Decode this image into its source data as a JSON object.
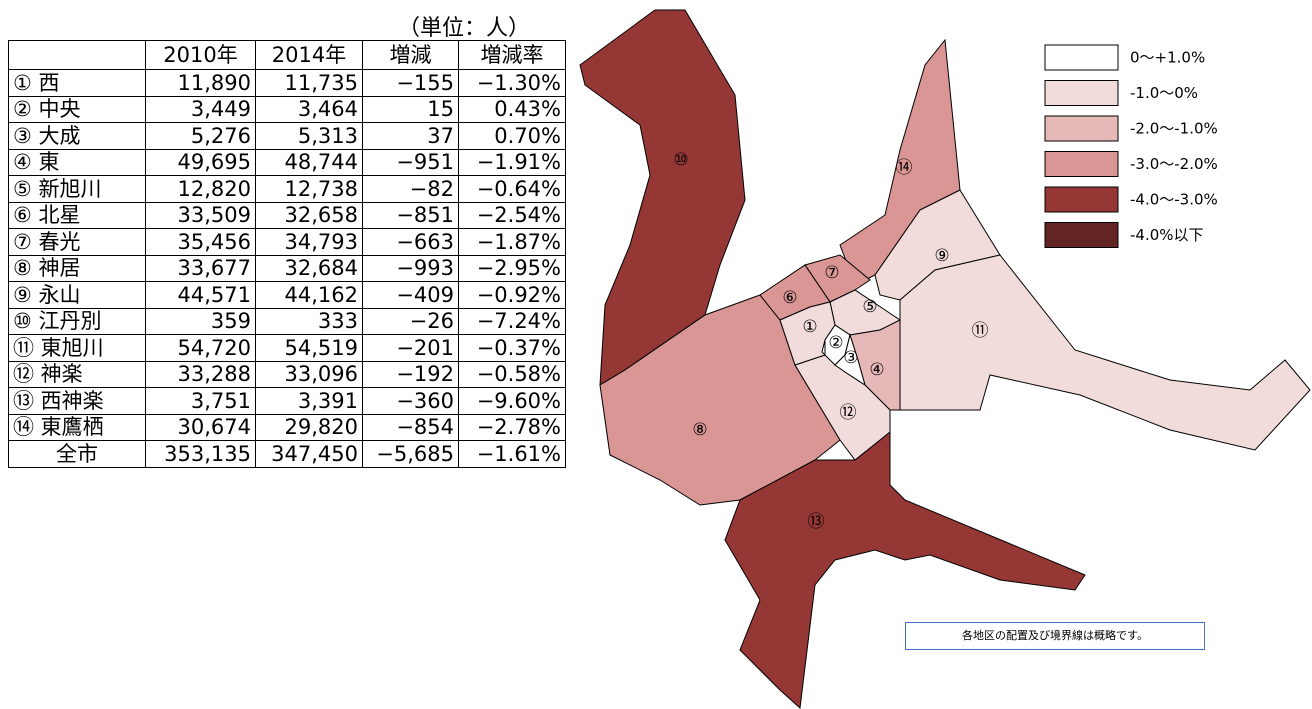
{
  "unit": "（単位：人）",
  "table": {
    "header": [
      "",
      "2010年",
      "2014年",
      "増減",
      "増減率"
    ],
    "rows": [
      [
        "① 西",
        "11,890",
        "11,735",
        "−155",
        "−1.30%"
      ],
      [
        "② 中央",
        "3,449",
        "3,464",
        "15",
        "0.43%"
      ],
      [
        "③ 大成",
        "5,276",
        "5,313",
        "37",
        "0.70%"
      ],
      [
        "④ 東",
        "49,695",
        "48,744",
        "−951",
        "−1.91%"
      ],
      [
        "⑤ 新旭川",
        "12,820",
        "12,738",
        "−82",
        "−0.64%"
      ],
      [
        "⑥ 北星",
        "33,509",
        "32,658",
        "−851",
        "−2.54%"
      ],
      [
        "⑦ 春光",
        "35,456",
        "34,793",
        "−663",
        "−1.87%"
      ],
      [
        "⑧ 神居",
        "33,677",
        "32,684",
        "−993",
        "−2.95%"
      ],
      [
        "⑨ 永山",
        "44,571",
        "44,162",
        "−409",
        "−0.92%"
      ],
      [
        "⑩ 江丹別",
        "359",
        "333",
        "−26",
        "−7.24%"
      ],
      [
        "⑪ 東旭川",
        "54,720",
        "54,519",
        "−201",
        "−0.37%"
      ],
      [
        "⑫ 神楽",
        "33,288",
        "33,096",
        "−192",
        "−0.58%"
      ],
      [
        "⑬ 西神楽",
        "3,751",
        "3,391",
        "−360",
        "−9.60%"
      ],
      [
        "⑭ 東鷹栖",
        "30,674",
        "29,820",
        "−854",
        "−2.78%"
      ],
      [
        "全市",
        "353,135",
        "347,450",
        "−5,685",
        "−1.61%"
      ]
    ]
  },
  "map": {
    "labels": [
      "①",
      "②",
      "③",
      "④",
      "⑤",
      "⑥",
      "⑦",
      "⑧",
      "⑨",
      "⑩",
      "⑪",
      "⑫",
      "⑬",
      "⑭"
    ]
  },
  "legend": [
    {
      "label": "0〜+1.0%",
      "color": "#ffffff"
    },
    {
      "label": "-1.0〜0%",
      "color": "#f2dcdb"
    },
    {
      "label": "-2.0〜-1.0%",
      "color": "#e6b9b8"
    },
    {
      "label": "-3.0〜-2.0%",
      "color": "#d99694"
    },
    {
      "label": "-4.0〜-3.0%",
      "color": "#953735"
    },
    {
      "label": "-4.0%以下",
      "color": "#632523"
    }
  ],
  "note": "各地区の配置及び境界線は概略です。"
}
